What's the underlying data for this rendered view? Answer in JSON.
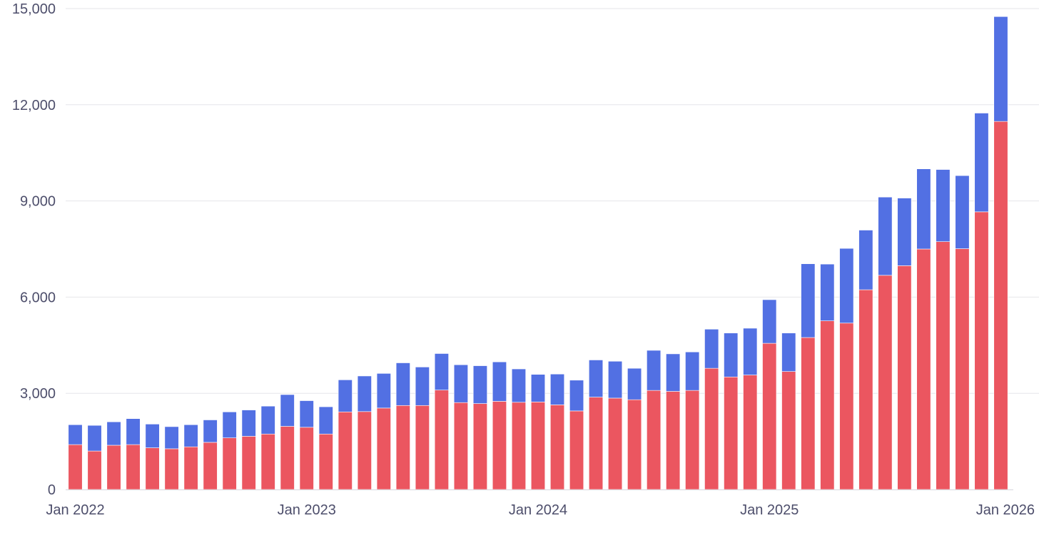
{
  "chart_data": {
    "type": "bar",
    "stacked": true,
    "title": "",
    "xlabel": "",
    "ylabel": "",
    "ylim": [
      0,
      15000
    ],
    "yticks": [
      0,
      3000,
      6000,
      9000,
      12000,
      15000
    ],
    "ytick_labels": [
      "0",
      "3,000",
      "6,000",
      "9,000",
      "12,000",
      "15,000"
    ],
    "xtick_labels": [
      "Jan 2022",
      "Jan 2023",
      "Jan 2024",
      "Jan 2025",
      "Jan 2026"
    ],
    "xtick_indices": [
      0,
      12,
      24,
      36,
      48
    ],
    "grid": true,
    "legend": "none",
    "categories": [
      "Jan 2022",
      "Feb 2022",
      "Mar 2022",
      "Apr 2022",
      "May 2022",
      "Jun 2022",
      "Jul 2022",
      "Aug 2022",
      "Sep 2022",
      "Oct 2022",
      "Nov 2022",
      "Dec 2022",
      "Jan 2023",
      "Feb 2023",
      "Mar 2023",
      "Apr 2023",
      "May 2023",
      "Jun 2023",
      "Jul 2023",
      "Aug 2023",
      "Sep 2023",
      "Oct 2023",
      "Nov 2023",
      "Dec 2023",
      "Jan 2024",
      "Feb 2024",
      "Mar 2024",
      "Apr 2024",
      "May 2024",
      "Jun 2024",
      "Jul 2024",
      "Aug 2024",
      "Sep 2024",
      "Oct 2024",
      "Nov 2024",
      "Dec 2024",
      "Jan 2025",
      "Feb 2025",
      "Mar 2025",
      "Apr 2025",
      "May 2025",
      "Jun 2025",
      "Jul 2025",
      "Aug 2025",
      "Sep 2025",
      "Oct 2025",
      "Nov 2025",
      "Dec 2025",
      "Jan 2026"
    ],
    "series": [
      {
        "color": "#eb5660",
        "values": [
          1400,
          1200,
          1380,
          1400,
          1300,
          1270,
          1330,
          1470,
          1610,
          1660,
          1730,
          1970,
          1940,
          1730,
          2420,
          2430,
          2540,
          2620,
          2620,
          3100,
          2710,
          2680,
          2750,
          2720,
          2730,
          2640,
          2450,
          2880,
          2850,
          2800,
          3090,
          3060,
          3090,
          3780,
          3510,
          3570,
          4560,
          3680,
          4740,
          5260,
          5190,
          6230,
          6680,
          6980,
          7500,
          7730,
          7510,
          8660,
          11480
        ]
      },
      {
        "color": "#5270e3",
        "values": [
          620,
          800,
          730,
          810,
          740,
          690,
          690,
          700,
          810,
          820,
          870,
          990,
          830,
          850,
          1000,
          1110,
          1080,
          1330,
          1200,
          1140,
          1180,
          1180,
          1230,
          1040,
          860,
          960,
          960,
          1160,
          1150,
          980,
          1250,
          1170,
          1200,
          1220,
          1370,
          1460,
          1360,
          1200,
          2300,
          1770,
          2330,
          1860,
          2440,
          2110,
          2500,
          2250,
          2280,
          3080,
          3270
        ]
      }
    ]
  }
}
